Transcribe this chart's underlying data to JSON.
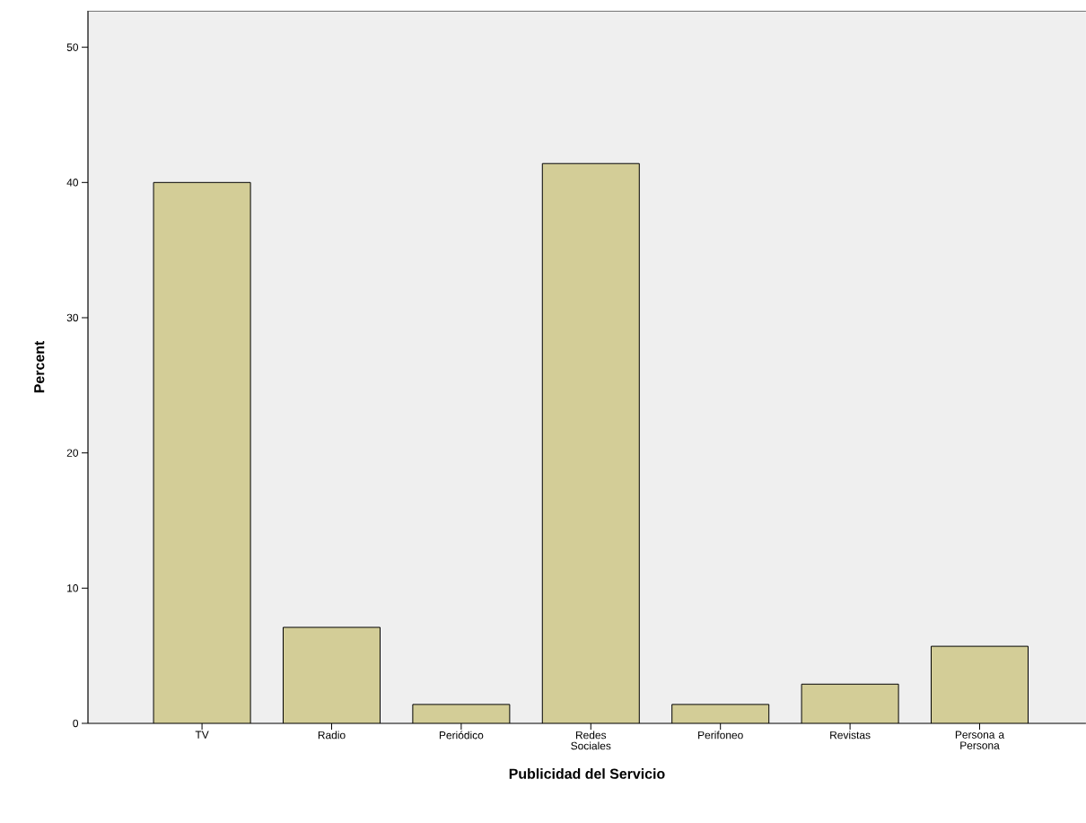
{
  "chart_data": {
    "type": "bar",
    "xlabel": "Publicidad del Servicio",
    "ylabel": "Percent",
    "categories": [
      "TV",
      "Radio",
      "Periódico",
      "Redes Sociales",
      "Perifoneo",
      "Revistas",
      "Persona a Persona"
    ],
    "values": [
      40.0,
      7.1,
      1.4,
      41.4,
      1.4,
      2.9,
      5.7
    ],
    "color": "#d3cd97",
    "ylim": [
      0,
      52.7
    ],
    "yticks": [
      0,
      10,
      20,
      30,
      40,
      50
    ]
  }
}
